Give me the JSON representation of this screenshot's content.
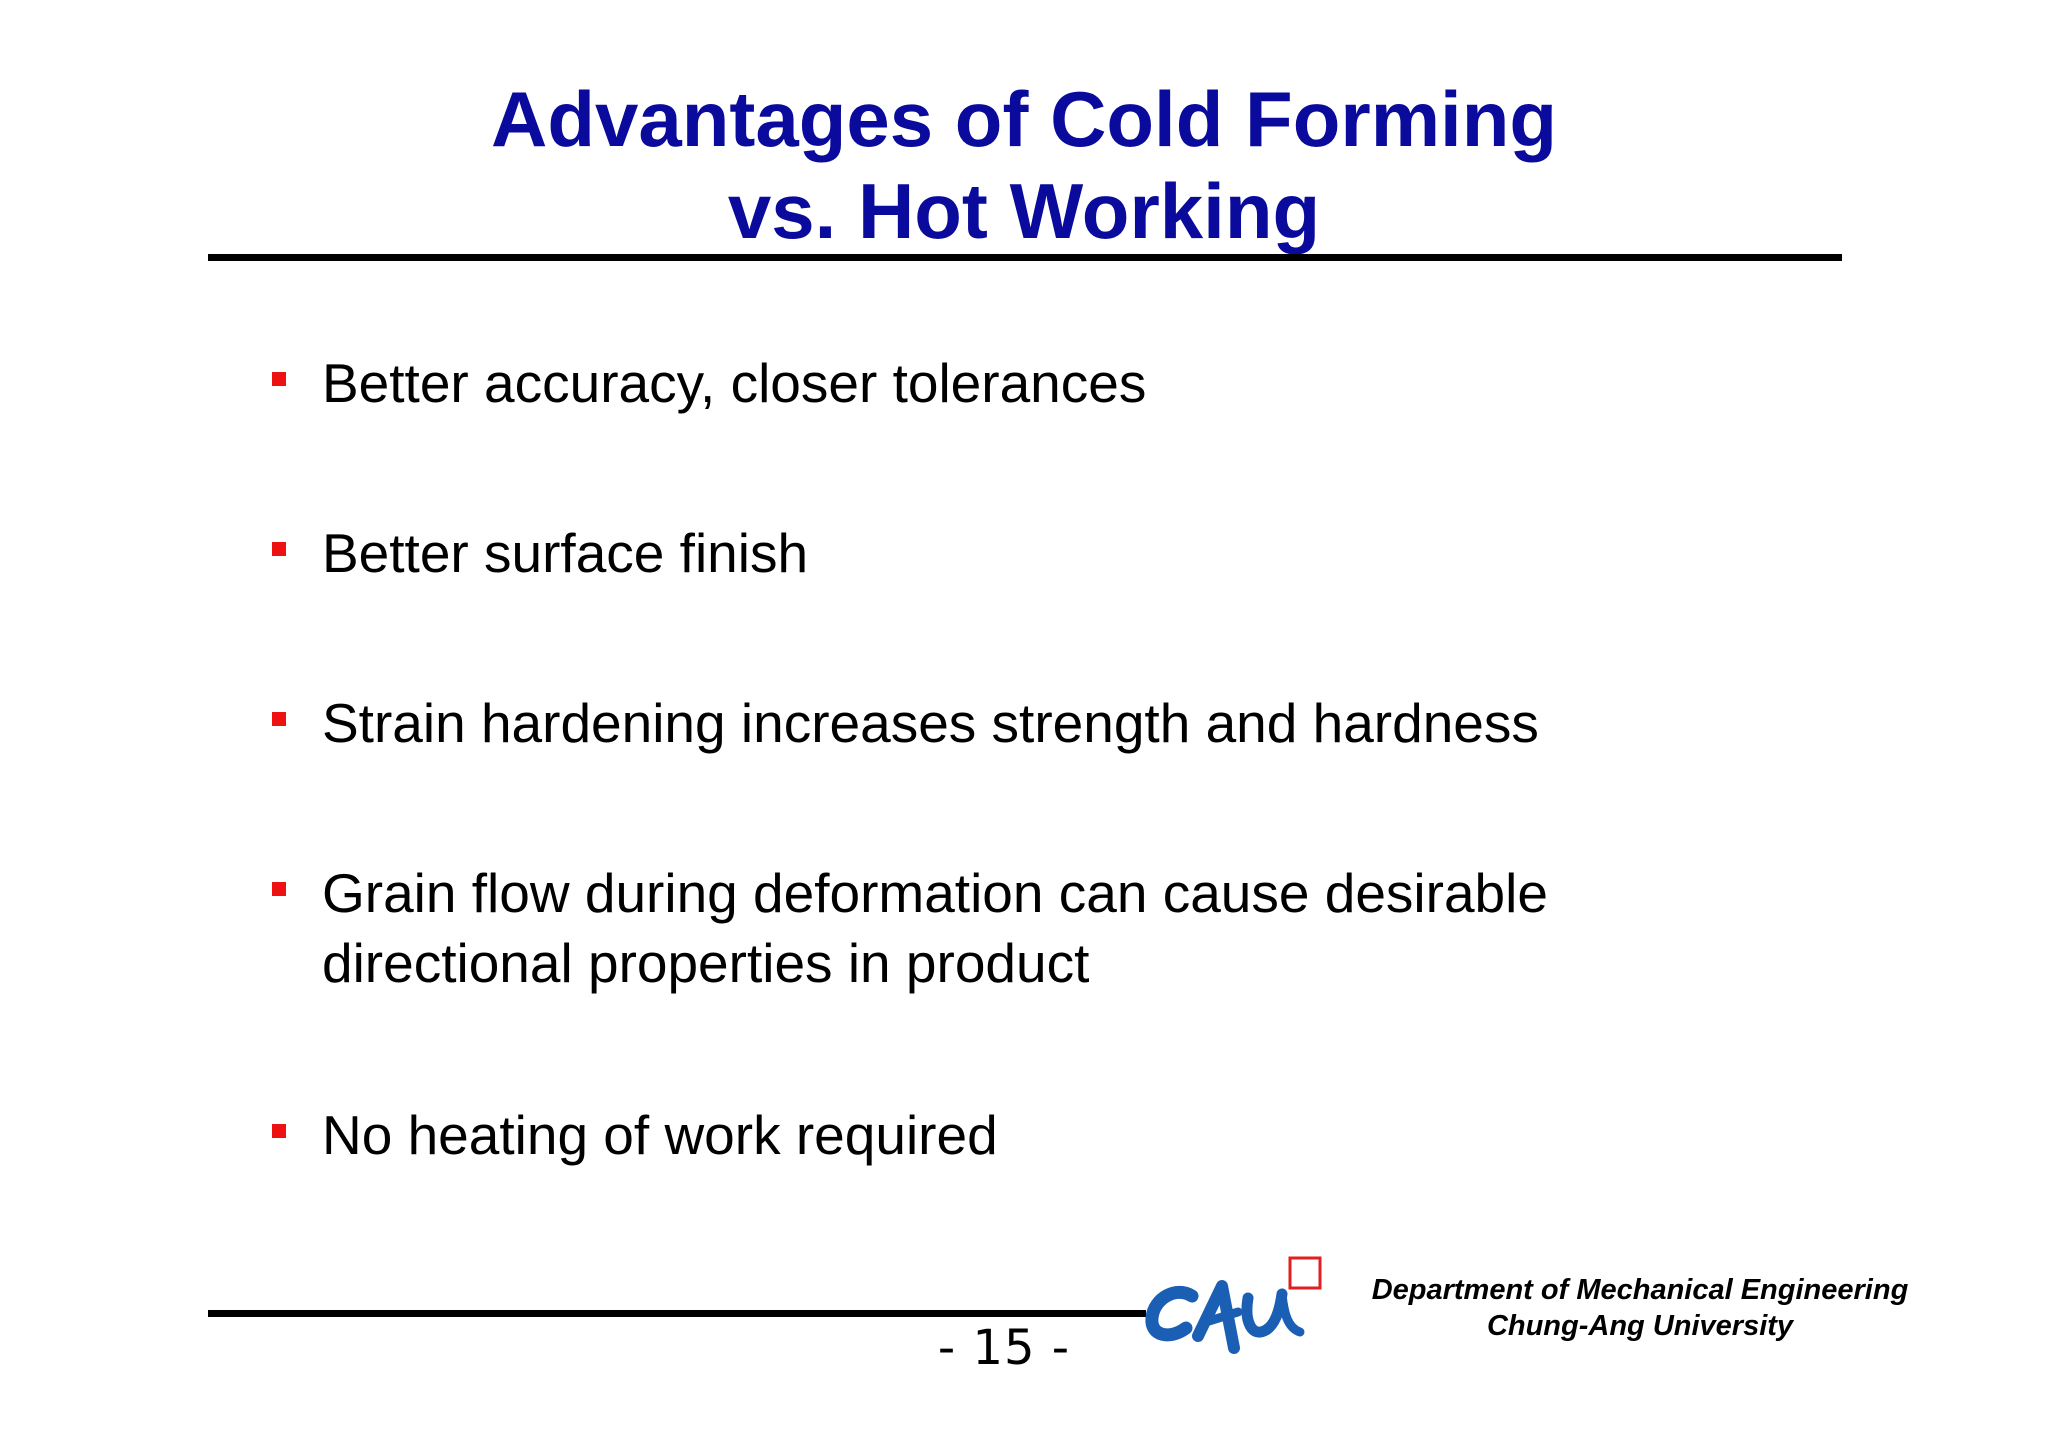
{
  "slide": {
    "title_line1": "Advantages of Cold Forming",
    "title_line2": "vs. Hot Working",
    "bullets": [
      {
        "text": "Better accuracy, closer tolerances"
      },
      {
        "text": "Better surface finish"
      },
      {
        "text": "Strain hardening increases strength and hardness"
      },
      {
        "text": "Grain flow during deformation can cause desirable\ndirectional properties in product"
      },
      {
        "text": "No heating of work required"
      }
    ],
    "page_number": "- 15 -"
  },
  "footer": {
    "logo_text": "CAU",
    "department": "Department of Mechanical Engineering",
    "university": "Chung-Ang University"
  },
  "colors": {
    "title": "#0a0a9c",
    "bullet_marker": "#ee1111",
    "logo_blue": "#1a5fb4",
    "logo_red": "#e02020"
  }
}
